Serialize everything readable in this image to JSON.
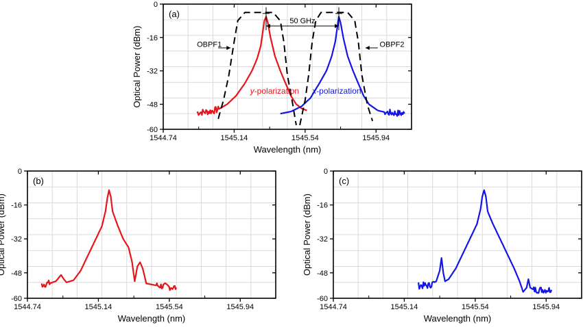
{
  "chart_data": [
    {
      "id": "a",
      "type": "line",
      "panel_label": "(a)",
      "xlabel": "Wavelength (nm)",
      "ylabel": "Optical Power  (dBm)",
      "xlim": [
        1544.74,
        1546.14
      ],
      "ylim": [
        -60,
        0
      ],
      "xticks": [
        "1544.74",
        "1545.14",
        "1545.54",
        "1545.94"
      ],
      "xtick_values": [
        1544.74,
        1545.14,
        1545.54,
        1545.94
      ],
      "yticks": [
        "0",
        "-16",
        "-32",
        "-48",
        "-60"
      ],
      "ytick_values": [
        0,
        -16,
        -32,
        -48,
        -60
      ],
      "grid": true,
      "series": [
        {
          "name": "y-polarization",
          "label_prefix": "y",
          "label_suffix": "-polarization",
          "color": "#e8141b",
          "dash": "",
          "noise_from": 1544.93,
          "noise_to": 1545.05,
          "points": [
            [
              1544.93,
              -52
            ],
            [
              1545.0,
              -51.5
            ],
            [
              1545.05,
              -50.5
            ],
            [
              1545.1,
              -48
            ],
            [
              1545.15,
              -44
            ],
            [
              1545.2,
              -38
            ],
            [
              1545.24,
              -32
            ],
            [
              1545.27,
              -26
            ],
            [
              1545.29,
              -20
            ],
            [
              1545.3,
              -14
            ],
            [
              1545.31,
              -8
            ],
            [
              1545.32,
              -6
            ],
            [
              1545.33,
              -9
            ],
            [
              1545.345,
              -16
            ],
            [
              1545.37,
              -25
            ],
            [
              1545.4,
              -32
            ],
            [
              1545.43,
              -38
            ],
            [
              1545.46,
              -44
            ],
            [
              1545.49,
              -48
            ],
            [
              1545.52,
              -50
            ],
            [
              1545.55,
              -51
            ]
          ]
        },
        {
          "name": "x-polarization",
          "label_prefix": "x",
          "label_suffix": "-polarization",
          "color": "#1414e6",
          "dash": "",
          "noise_from": 1545.99,
          "noise_to": 1546.1,
          "points": [
            [
              1545.4,
              -52.5
            ],
            [
              1545.46,
              -51.5
            ],
            [
              1545.52,
              -49
            ],
            [
              1545.57,
              -45
            ],
            [
              1545.62,
              -38
            ],
            [
              1545.66,
              -32
            ],
            [
              1545.69,
              -25
            ],
            [
              1545.71,
              -18
            ],
            [
              1545.72,
              -12
            ],
            [
              1545.73,
              -6
            ],
            [
              1545.74,
              -9
            ],
            [
              1545.755,
              -16
            ],
            [
              1545.78,
              -25
            ],
            [
              1545.81,
              -32
            ],
            [
              1545.84,
              -38
            ],
            [
              1545.87,
              -44
            ],
            [
              1545.9,
              -48
            ],
            [
              1545.95,
              -51
            ],
            [
              1546.0,
              -52
            ],
            [
              1546.1,
              -52.5
            ]
          ]
        },
        {
          "name": "OBPF1",
          "color": "#000000",
          "dash": "10 6",
          "points": [
            [
              1545.05,
              -55
            ],
            [
              1545.08,
              -46
            ],
            [
              1545.11,
              -34
            ],
            [
              1545.14,
              -18
            ],
            [
              1545.16,
              -8
            ],
            [
              1545.2,
              -4
            ],
            [
              1545.36,
              -4
            ],
            [
              1545.4,
              -8
            ],
            [
              1545.42,
              -18
            ],
            [
              1545.44,
              -34
            ],
            [
              1545.47,
              -48
            ],
            [
              1545.49,
              -58
            ]
          ]
        },
        {
          "name": "OBPF2",
          "color": "#000000",
          "dash": "10 6",
          "points": [
            [
              1545.51,
              -58
            ],
            [
              1545.54,
              -46
            ],
            [
              1545.56,
              -34
            ],
            [
              1545.58,
              -18
            ],
            [
              1545.6,
              -8
            ],
            [
              1545.63,
              -4
            ],
            [
              1545.78,
              -4
            ],
            [
              1545.82,
              -8
            ],
            [
              1545.84,
              -18
            ],
            [
              1545.86,
              -34
            ],
            [
              1545.89,
              -48
            ],
            [
              1545.92,
              -56
            ]
          ]
        }
      ],
      "annotations": [
        {
          "text": "OBPF1",
          "target": "OBPF1"
        },
        {
          "text": "OBPF2",
          "target": "OBPF2"
        },
        {
          "text": "50 GHz",
          "from": 1545.32,
          "to": 1545.73
        }
      ]
    },
    {
      "id": "b",
      "type": "line",
      "panel_label": "(b)",
      "xlabel": "Wavelength (nm)",
      "ylabel": "Optical Power  (dBm)",
      "xlim": [
        1544.74,
        1546.14
      ],
      "ylim": [
        -60,
        0
      ],
      "xticks": [
        "1544.74",
        "1545.14",
        "1545.54",
        "1545.94"
      ],
      "xtick_values": [
        1544.74,
        1545.14,
        1545.54,
        1545.94
      ],
      "yticks": [
        "0",
        "-16",
        "-32",
        "-48",
        "-60"
      ],
      "ytick_values": [
        0,
        -16,
        -32,
        -48,
        -60
      ],
      "grid": true,
      "series": [
        {
          "name": "y-polarization",
          "color": "#e8141b",
          "dash": "",
          "noise_from": 1544.82,
          "noise_to": 1544.88,
          "noise_from2": 1545.47,
          "noise_to2": 1545.58,
          "points": [
            [
              1544.82,
              -53.5
            ],
            [
              1544.86,
              -53
            ],
            [
              1544.9,
              -52
            ],
            [
              1544.93,
              -49
            ],
            [
              1544.945,
              -51
            ],
            [
              1544.96,
              -52.5
            ],
            [
              1545.0,
              -51.5
            ],
            [
              1545.04,
              -47
            ],
            [
              1545.08,
              -40
            ],
            [
              1545.12,
              -33
            ],
            [
              1545.16,
              -26
            ],
            [
              1545.18,
              -19
            ],
            [
              1545.19,
              -13
            ],
            [
              1545.2,
              -9
            ],
            [
              1545.21,
              -12
            ],
            [
              1545.22,
              -19
            ],
            [
              1545.25,
              -26
            ],
            [
              1545.28,
              -32
            ],
            [
              1545.31,
              -36
            ],
            [
              1545.33,
              -43
            ],
            [
              1545.345,
              -52
            ],
            [
              1545.36,
              -45
            ],
            [
              1545.375,
              -43
            ],
            [
              1545.39,
              -46
            ],
            [
              1545.41,
              -53
            ],
            [
              1545.47,
              -54
            ],
            [
              1545.58,
              -55
            ]
          ]
        }
      ]
    },
    {
      "id": "c",
      "type": "line",
      "panel_label": "(c)",
      "xlabel": "Wavelength (nm)",
      "ylabel": "Optical Power  (dBm)",
      "xlim": [
        1544.74,
        1546.14
      ],
      "ylim": [
        -60,
        0
      ],
      "xticks": [
        "1544.74",
        "1545.14",
        "1545.54",
        "1545.94"
      ],
      "xtick_values": [
        1544.74,
        1545.14,
        1545.54,
        1545.94
      ],
      "yticks": [
        "0",
        "-16",
        "-32",
        "-48",
        "-60"
      ],
      "ytick_values": [
        0,
        -16,
        -32,
        -48,
        -60
      ],
      "grid": true,
      "series": [
        {
          "name": "x-polarization",
          "color": "#1414e6",
          "dash": "",
          "noise_from": 1545.22,
          "noise_to": 1545.31,
          "noise_from2": 1545.87,
          "noise_to2": 1545.97,
          "points": [
            [
              1545.22,
              -54
            ],
            [
              1545.28,
              -54
            ],
            [
              1545.32,
              -52
            ],
            [
              1545.34,
              -47
            ],
            [
              1545.35,
              -41
            ],
            [
              1545.36,
              -48
            ],
            [
              1545.37,
              -52
            ],
            [
              1545.39,
              -51
            ],
            [
              1545.43,
              -46
            ],
            [
              1545.47,
              -39
            ],
            [
              1545.51,
              -32
            ],
            [
              1545.55,
              -25
            ],
            [
              1545.57,
              -18
            ],
            [
              1545.58,
              -12
            ],
            [
              1545.59,
              -9
            ],
            [
              1545.6,
              -12
            ],
            [
              1545.61,
              -19
            ],
            [
              1545.64,
              -25
            ],
            [
              1545.68,
              -32
            ],
            [
              1545.72,
              -39
            ],
            [
              1545.76,
              -46
            ],
            [
              1545.79,
              -52
            ],
            [
              1545.81,
              -57
            ],
            [
              1545.83,
              -55
            ],
            [
              1545.84,
              -51
            ],
            [
              1545.85,
              -55
            ],
            [
              1545.87,
              -56
            ],
            [
              1545.97,
              -56
            ]
          ]
        }
      ]
    }
  ]
}
